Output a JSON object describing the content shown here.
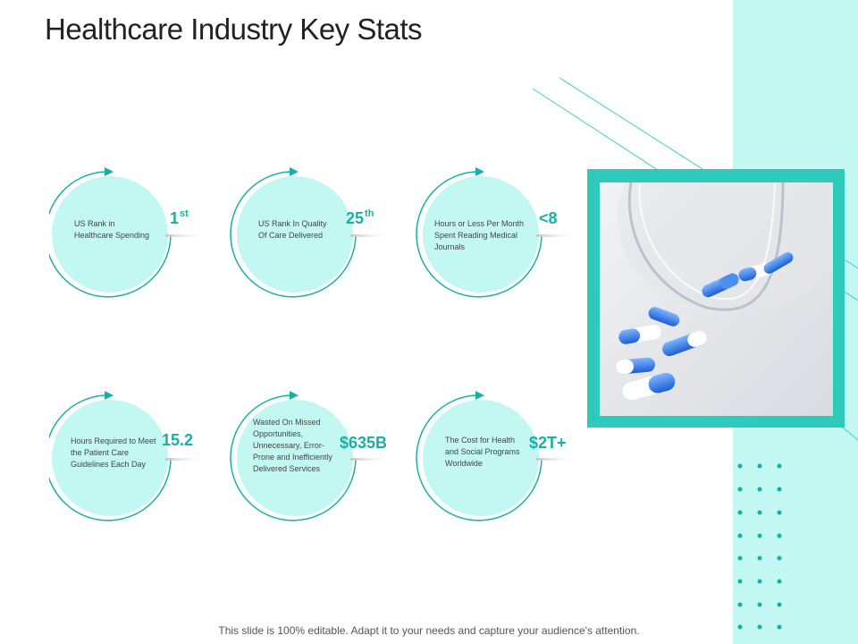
{
  "title": "Healthcare Industry Key Stats",
  "footer": "This slide is 100% editable. Adapt it to your needs and capture your audience's attention.",
  "colors": {
    "accent": "#17b0a7",
    "circle_fill": "#c2f7f2",
    "panel": "#c2f7f2",
    "frame": "#2ecbbd"
  },
  "stats": [
    {
      "desc": "US Rank in Healthcare Spending",
      "value": "1",
      "suffix": "st"
    },
    {
      "desc": "US Rank In Quality Of Care Delivered",
      "value": "25",
      "suffix": "th"
    },
    {
      "desc": "Hours or Less Per Month Spent Reading Medical Journals",
      "value": "<8",
      "suffix": ""
    },
    {
      "desc": "Hours Required to Meet the Patient Care Guidelines Each Day",
      "value": "15.2",
      "suffix": ""
    },
    {
      "desc": "Wasted On Missed Opportunities, Unnecessary, Error-Prone and Inefficiently Delivered Services",
      "value": "$635B",
      "suffix": ""
    },
    {
      "desc": "The Cost for Health and Social Programs Worldwide",
      "value": "$2T+",
      "suffix": ""
    }
  ],
  "image": {
    "icon": "medicine-capsules-photo"
  }
}
